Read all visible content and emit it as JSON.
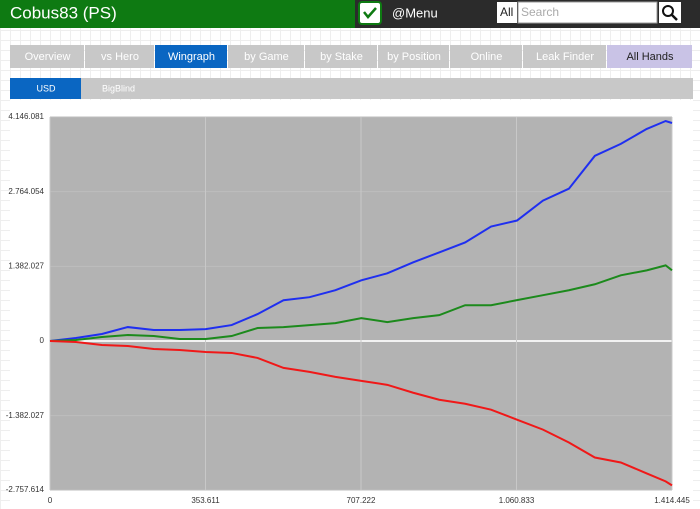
{
  "header": {
    "title": "Cobus83 (PS)",
    "menu": "@Menu",
    "filter": "All",
    "search_placeholder": "Search"
  },
  "tabs": [
    "Overview",
    "vs Hero",
    "Wingraph",
    "by Game",
    "by Stake",
    "by Position",
    "Online",
    "Leak Finder",
    "All Hands"
  ],
  "subtabs": [
    "USD",
    "BigBlind"
  ],
  "chart_data": {
    "type": "line",
    "x": [
      0,
      59000,
      118000,
      177000,
      236000,
      295000,
      354000,
      413000,
      472000,
      531000,
      590000,
      649000,
      708000,
      767000,
      826000,
      885000,
      944000,
      1003000,
      1062000,
      1121000,
      1180000,
      1239000,
      1298000,
      1357000,
      1400000,
      1414445
    ],
    "series": [
      {
        "color": "#1f2ff0",
        "values": [
          0,
          55000,
          130000,
          258000,
          203000,
          203000,
          221000,
          295000,
          498000,
          755000,
          811000,
          940000,
          1124000,
          1253000,
          1456000,
          1640000,
          1824000,
          2119000,
          2230000,
          2598000,
          2819000,
          3427000,
          3649000,
          3925000,
          4072000,
          4035000
        ]
      },
      {
        "color": "#1c8a1c",
        "values": [
          0,
          18000,
          74000,
          111000,
          92000,
          37000,
          37000,
          92000,
          240000,
          258000,
          295000,
          332000,
          424000,
          350000,
          424000,
          479000,
          663000,
          663000,
          756000,
          848000,
          940000,
          1050000,
          1216000,
          1308000,
          1400000,
          1308000
        ]
      },
      {
        "color": "#f01818",
        "values": [
          0,
          -18000,
          -74000,
          -92000,
          -147000,
          -166000,
          -203000,
          -221000,
          -313000,
          -498000,
          -571000,
          -663000,
          -737000,
          -811000,
          -958000,
          -1087000,
          -1161000,
          -1271000,
          -1456000,
          -1640000,
          -1879000,
          -2156000,
          -2248000,
          -2451000,
          -2598000,
          -2672000
        ]
      }
    ],
    "xlim": [
      0,
      1414445
    ],
    "xticks": [
      0,
      {
        "value": 353611,
        "label": "353.611"
      },
      {
        "value": 707222,
        "label": "707.222"
      },
      {
        "value": 1060833,
        "label": "1.060.833"
      },
      {
        "value": 1414445,
        "label": "1.414.445"
      }
    ],
    "ylim": [
      -2757614,
      4146081
    ],
    "yticks": [
      {
        "value": -2757614,
        "label": "-2.757.614"
      },
      {
        "value": -1382027,
        "label": "-1.382.027"
      },
      0,
      {
        "value": 1382027,
        "label": "1.382.027"
      },
      {
        "value": 2764054,
        "label": "2.764.054"
      },
      {
        "value": 4146081,
        "label": "4.146.081"
      }
    ],
    "grid": true
  }
}
